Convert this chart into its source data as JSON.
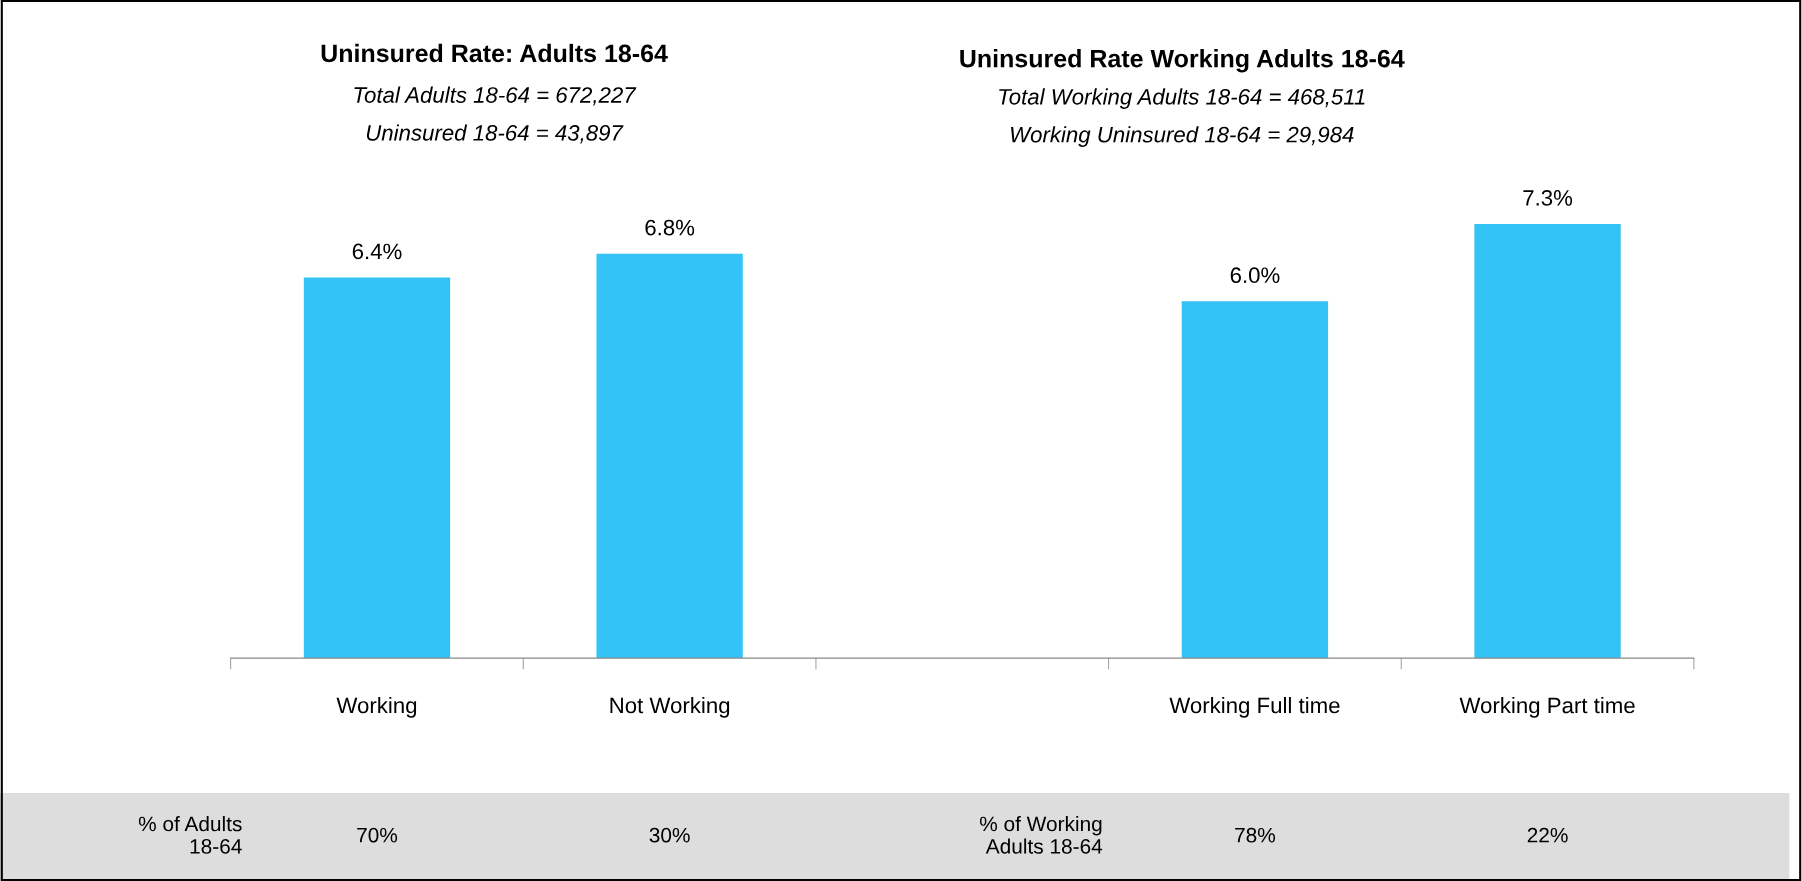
{
  "chart_data": {
    "type": "bar",
    "categories": [
      "Working",
      "Not Working",
      null,
      "Working Full time",
      "Working Part time"
    ],
    "values": [
      6.4,
      6.8,
      null,
      6.0,
      7.3
    ],
    "value_labels": [
      "6.4%",
      "6.8%",
      null,
      "6.0%",
      "7.3%"
    ],
    "color": "#33c3f6",
    "grid": false,
    "legend": false,
    "tick_labels": "x",
    "annotations": [
      "Uninsured Rate: Adults 18-64",
      "Total Adults 18-64 = 672,227",
      "Uninsured 18-64 = 43,897",
      "Uninsured Rate Working Adults 18-64",
      "Total Working Adults 18-64 = 468,511",
      "Working Uninsured 18-64 = 29,984",
      "% of Adults\n18-64",
      "70%",
      "30%",
      "% of Working\nAdults 18-64",
      "78%",
      "22%"
    ]
  }
}
